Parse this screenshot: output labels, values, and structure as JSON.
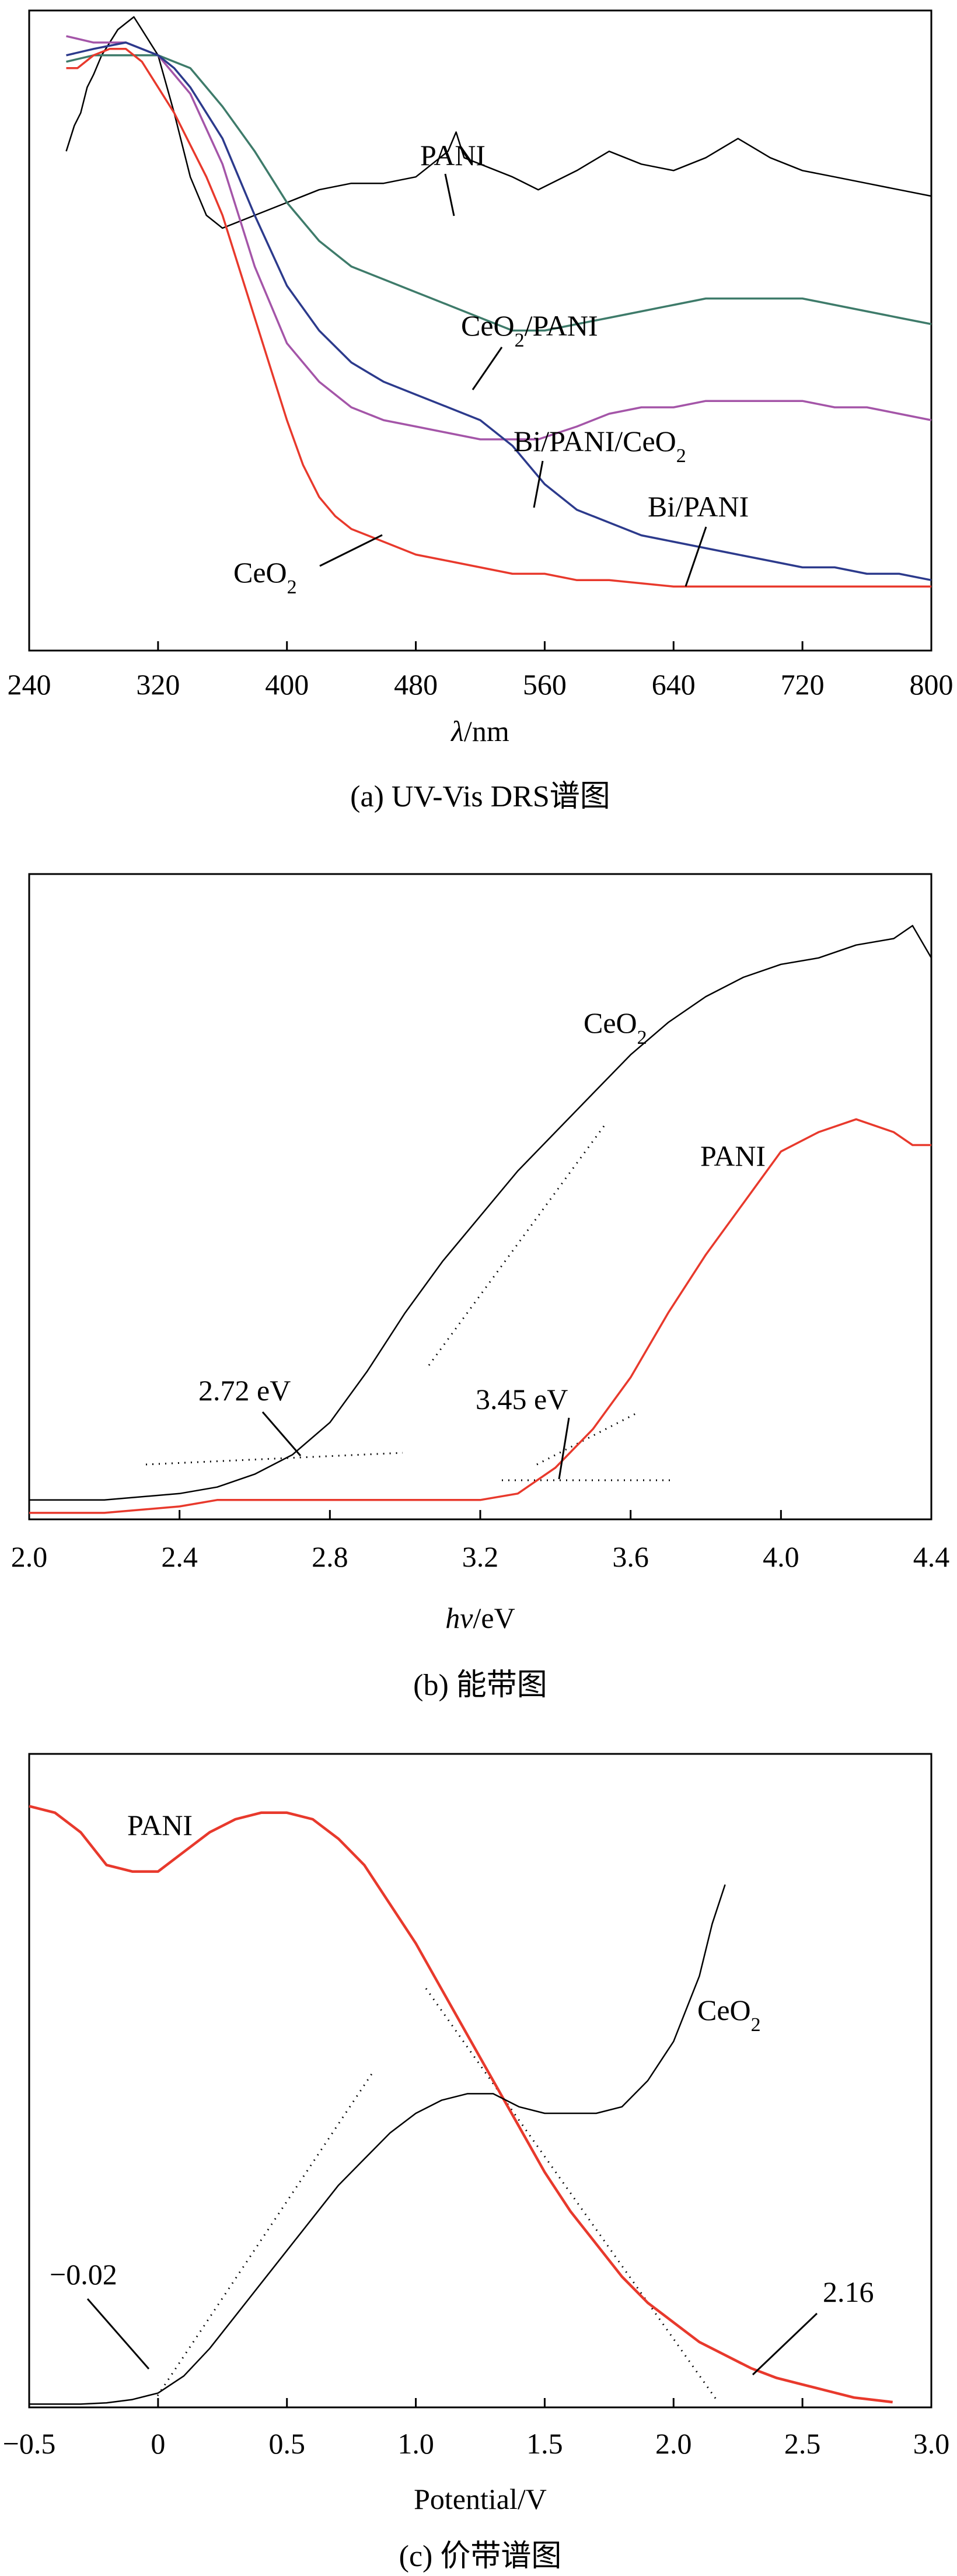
{
  "colors": {
    "black": "#000000",
    "red": "#e8392c",
    "teal": "#3e7b6a",
    "purple": "#a455a8",
    "navy": "#2c3a8c"
  },
  "chart_data": [
    {
      "type": "line",
      "caption": "(a) UV-Vis DRS谱图",
      "xlabel_italic": "λ",
      "xlabel_rest": "/nm",
      "ylabel": "",
      "xlim": [
        240,
        800
      ],
      "ylim": [
        0,
        1
      ],
      "xticks": [
        240,
        320,
        400,
        480,
        560,
        640,
        720,
        800
      ],
      "series": [
        {
          "name": "PANI",
          "label": "PANI",
          "color": "#000000",
          "x": [
            263,
            268,
            272,
            276,
            280,
            285,
            290,
            295,
            300,
            305,
            310,
            315,
            320,
            330,
            340,
            350,
            360,
            380,
            400,
            420,
            440,
            460,
            480,
            490,
            500,
            505,
            510,
            520,
            540,
            556,
            580,
            600,
            620,
            640,
            660,
            680,
            700,
            720,
            740,
            760,
            780,
            800
          ],
          "y": [
            0.78,
            0.82,
            0.84,
            0.88,
            0.9,
            0.93,
            0.95,
            0.97,
            0.98,
            0.99,
            0.97,
            0.95,
            0.93,
            0.84,
            0.74,
            0.68,
            0.66,
            0.68,
            0.7,
            0.72,
            0.73,
            0.73,
            0.74,
            0.76,
            0.78,
            0.81,
            0.77,
            0.76,
            0.74,
            0.72,
            0.75,
            0.78,
            0.76,
            0.75,
            0.77,
            0.8,
            0.77,
            0.75,
            0.74,
            0.73,
            0.72,
            0.71
          ]
        },
        {
          "name": "CeO2/PANI",
          "label_main": "CeO",
          "label_sub": "2",
          "label_tail": "/PANI",
          "color": "#3e7b6a",
          "x": [
            263,
            280,
            300,
            320,
            340,
            350,
            360,
            380,
            400,
            420,
            440,
            460,
            480,
            500,
            520,
            540,
            560,
            580,
            600,
            620,
            640,
            660,
            680,
            700,
            720,
            740,
            760,
            780,
            800
          ],
          "y": [
            0.92,
            0.93,
            0.93,
            0.93,
            0.91,
            0.88,
            0.85,
            0.78,
            0.7,
            0.64,
            0.6,
            0.58,
            0.56,
            0.54,
            0.52,
            0.5,
            0.5,
            0.51,
            0.52,
            0.53,
            0.54,
            0.55,
            0.55,
            0.55,
            0.55,
            0.54,
            0.53,
            0.52,
            0.51
          ]
        },
        {
          "name": "Bi/PANI/CeO2",
          "label_main": "Bi/PANI/CeO",
          "label_sub": "2",
          "color": "#a455a8",
          "x": [
            263,
            280,
            300,
            320,
            340,
            360,
            370,
            380,
            390,
            400,
            420,
            440,
            460,
            480,
            500,
            520,
            540,
            556,
            580,
            600,
            620,
            640,
            660,
            680,
            700,
            720,
            740,
            760,
            780,
            800
          ],
          "y": [
            0.96,
            0.95,
            0.95,
            0.93,
            0.87,
            0.76,
            0.68,
            0.6,
            0.54,
            0.48,
            0.42,
            0.38,
            0.36,
            0.35,
            0.34,
            0.33,
            0.33,
            0.33,
            0.35,
            0.37,
            0.38,
            0.38,
            0.39,
            0.39,
            0.39,
            0.39,
            0.38,
            0.38,
            0.37,
            0.36
          ]
        },
        {
          "name": "Bi/PANI",
          "label": "Bi/PANI",
          "color": "#2c3a8c",
          "x": [
            263,
            280,
            300,
            320,
            330,
            340,
            360,
            380,
            400,
            420,
            440,
            460,
            480,
            500,
            520,
            540,
            560,
            580,
            600,
            620,
            640,
            660,
            680,
            700,
            720,
            740,
            760,
            780,
            800
          ],
          "y": [
            0.93,
            0.94,
            0.95,
            0.93,
            0.91,
            0.88,
            0.8,
            0.68,
            0.57,
            0.5,
            0.45,
            0.42,
            0.4,
            0.38,
            0.36,
            0.32,
            0.26,
            0.22,
            0.2,
            0.18,
            0.17,
            0.16,
            0.15,
            0.14,
            0.13,
            0.13,
            0.12,
            0.12,
            0.11
          ]
        },
        {
          "name": "CeO2",
          "label_main": "CeO",
          "label_sub": "2",
          "color": "#e8392c",
          "x": [
            263,
            270,
            280,
            290,
            300,
            310,
            320,
            330,
            340,
            350,
            360,
            370,
            380,
            390,
            400,
            410,
            420,
            430,
            440,
            460,
            480,
            500,
            520,
            540,
            560,
            580,
            600,
            640,
            680,
            720,
            760,
            800
          ],
          "y": [
            0.91,
            0.91,
            0.93,
            0.94,
            0.94,
            0.92,
            0.88,
            0.84,
            0.79,
            0.74,
            0.68,
            0.6,
            0.52,
            0.44,
            0.36,
            0.29,
            0.24,
            0.21,
            0.19,
            0.17,
            0.15,
            0.14,
            0.13,
            0.12,
            0.12,
            0.11,
            0.11,
            0.1,
            0.1,
            0.1,
            0.1,
            0.1
          ]
        }
      ]
    },
    {
      "type": "line",
      "caption": "(b) 能带图",
      "xlabel_italic": "hv",
      "xlabel_rest": "/eV",
      "ylabel": "",
      "xlim": [
        2.0,
        4.4
      ],
      "ylim": [
        0,
        1
      ],
      "xticks": [
        2.0,
        2.4,
        2.8,
        3.2,
        3.6,
        4.0,
        4.4
      ],
      "xtick_labels": [
        "2.0",
        "2.4",
        "2.8",
        "3.2",
        "3.6",
        "4.0",
        "4.4"
      ],
      "series": [
        {
          "name": "CeO2",
          "label_main": "CeO",
          "label_sub": "2",
          "color": "#000000",
          "x": [
            2.0,
            2.2,
            2.4,
            2.5,
            2.6,
            2.7,
            2.8,
            2.9,
            3.0,
            3.1,
            3.2,
            3.3,
            3.4,
            3.5,
            3.6,
            3.7,
            3.8,
            3.9,
            4.0,
            4.1,
            4.2,
            4.3,
            4.35,
            4.4
          ],
          "y": [
            0.03,
            0.03,
            0.04,
            0.05,
            0.07,
            0.1,
            0.15,
            0.23,
            0.32,
            0.4,
            0.47,
            0.54,
            0.6,
            0.66,
            0.72,
            0.77,
            0.81,
            0.84,
            0.86,
            0.87,
            0.89,
            0.9,
            0.92,
            0.87
          ]
        },
        {
          "name": "PANI",
          "label": "PANI",
          "color": "#e8392c",
          "x": [
            2.0,
            2.2,
            2.4,
            2.5,
            2.6,
            2.8,
            3.0,
            3.2,
            3.3,
            3.4,
            3.5,
            3.6,
            3.7,
            3.8,
            3.9,
            4.0,
            4.1,
            4.2,
            4.3,
            4.35,
            4.4
          ],
          "y": [
            0.01,
            0.01,
            0.02,
            0.03,
            0.03,
            0.03,
            0.03,
            0.03,
            0.04,
            0.08,
            0.14,
            0.22,
            0.32,
            0.41,
            0.49,
            0.57,
            0.6,
            0.62,
            0.6,
            0.58,
            0.58
          ]
        }
      ],
      "annotations": [
        {
          "text": "2.72 eV",
          "x": 2.72
        },
        {
          "text": "3.45 eV",
          "x": 3.45
        }
      ]
    },
    {
      "type": "line",
      "caption": "(c) 价带谱图",
      "xlabel": "Potential/V",
      "ylabel": "",
      "xlim": [
        -0.5,
        3.0
      ],
      "ylim": [
        0,
        1
      ],
      "xticks": [
        -0.5,
        0,
        0.5,
        1.0,
        1.5,
        2.0,
        2.5,
        3.0
      ],
      "xtick_labels": [
        "−0.5",
        "0",
        "0.5",
        "1.0",
        "1.5",
        "2.0",
        "2.5",
        "3.0"
      ],
      "series": [
        {
          "name": "PANI",
          "label": "PANI",
          "color": "#e8392c",
          "x": [
            -0.5,
            -0.4,
            -0.3,
            -0.2,
            -0.1,
            0.0,
            0.1,
            0.2,
            0.3,
            0.4,
            0.5,
            0.6,
            0.7,
            0.8,
            0.9,
            1.0,
            1.1,
            1.2,
            1.3,
            1.4,
            1.5,
            1.6,
            1.7,
            1.8,
            1.9,
            2.0,
            2.1,
            2.2,
            2.3,
            2.4,
            2.5,
            2.6,
            2.7,
            2.85
          ],
          "y": [
            0.92,
            0.91,
            0.88,
            0.83,
            0.82,
            0.82,
            0.85,
            0.88,
            0.9,
            0.91,
            0.91,
            0.9,
            0.87,
            0.83,
            0.77,
            0.71,
            0.64,
            0.57,
            0.5,
            0.43,
            0.36,
            0.3,
            0.25,
            0.2,
            0.16,
            0.13,
            0.1,
            0.08,
            0.06,
            0.045,
            0.035,
            0.025,
            0.015,
            0.008
          ]
        },
        {
          "name": "CeO2",
          "label_main": "CeO",
          "label_sub": "2",
          "color": "#000000",
          "x": [
            -0.5,
            -0.3,
            -0.2,
            -0.1,
            0.0,
            0.1,
            0.2,
            0.3,
            0.4,
            0.5,
            0.6,
            0.7,
            0.8,
            0.9,
            1.0,
            1.1,
            1.2,
            1.3,
            1.4,
            1.5,
            1.6,
            1.7,
            1.8,
            1.9,
            2.0,
            2.1,
            2.15,
            2.2
          ],
          "y": [
            0.005,
            0.005,
            0.007,
            0.012,
            0.022,
            0.048,
            0.09,
            0.14,
            0.19,
            0.24,
            0.29,
            0.34,
            0.38,
            0.42,
            0.45,
            0.47,
            0.48,
            0.48,
            0.46,
            0.45,
            0.45,
            0.45,
            0.46,
            0.5,
            0.56,
            0.66,
            0.74,
            0.8
          ]
        }
      ],
      "annotations": [
        {
          "text": "−0.02",
          "x": -0.02
        },
        {
          "text": "2.16",
          "x": 2.16
        }
      ]
    }
  ]
}
